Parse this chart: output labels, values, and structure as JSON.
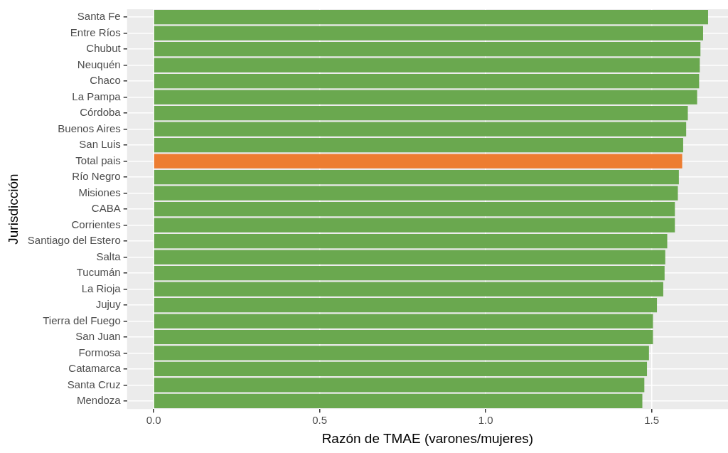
{
  "chart_data": {
    "type": "bar",
    "orientation": "horizontal",
    "xlabel": "Razón de TMAE (varones/mujeres)",
    "ylabel": "Jurisdicción",
    "categories": [
      "Santa Fe",
      "Entre Ríos",
      "Chubut",
      "Neuquén",
      "Chaco",
      "La Pampa",
      "Córdoba",
      "Buenos Aires",
      "San Luis",
      "Total pais",
      "Río Negro",
      "Misiones",
      "CABA",
      "Corrientes",
      "Santiago del Estero",
      "Salta",
      "Tucumán",
      "La Rioja",
      "Jujuy",
      "Tierra del Fuego",
      "San Juan",
      "Formosa",
      "Catamarca",
      "Santa Cruz",
      "Mendoza"
    ],
    "values": [
      1.67,
      1.655,
      1.647,
      1.645,
      1.643,
      1.637,
      1.609,
      1.604,
      1.595,
      1.592,
      1.582,
      1.579,
      1.57,
      1.57,
      1.547,
      1.541,
      1.539,
      1.535,
      1.516,
      1.504,
      1.504,
      1.492,
      1.486,
      1.478,
      1.472
    ],
    "colors": [
      "#6aa84f",
      "#6aa84f",
      "#6aa84f",
      "#6aa84f",
      "#6aa84f",
      "#6aa84f",
      "#6aa84f",
      "#6aa84f",
      "#6aa84f",
      "#ed7d31",
      "#6aa84f",
      "#6aa84f",
      "#6aa84f",
      "#6aa84f",
      "#6aa84f",
      "#6aa84f",
      "#6aa84f",
      "#6aa84f",
      "#6aa84f",
      "#6aa84f",
      "#6aa84f",
      "#6aa84f",
      "#6aa84f",
      "#6aa84f",
      "#6aa84f"
    ],
    "xlim": [
      -0.08,
      1.73
    ],
    "xticks": [
      {
        "value": 0,
        "label": "0.0"
      },
      {
        "value": 0.5,
        "label": "0.5"
      },
      {
        "value": 1,
        "label": "1.0"
      },
      {
        "value": 1.5,
        "label": "1.5"
      }
    ],
    "grid": true
  }
}
